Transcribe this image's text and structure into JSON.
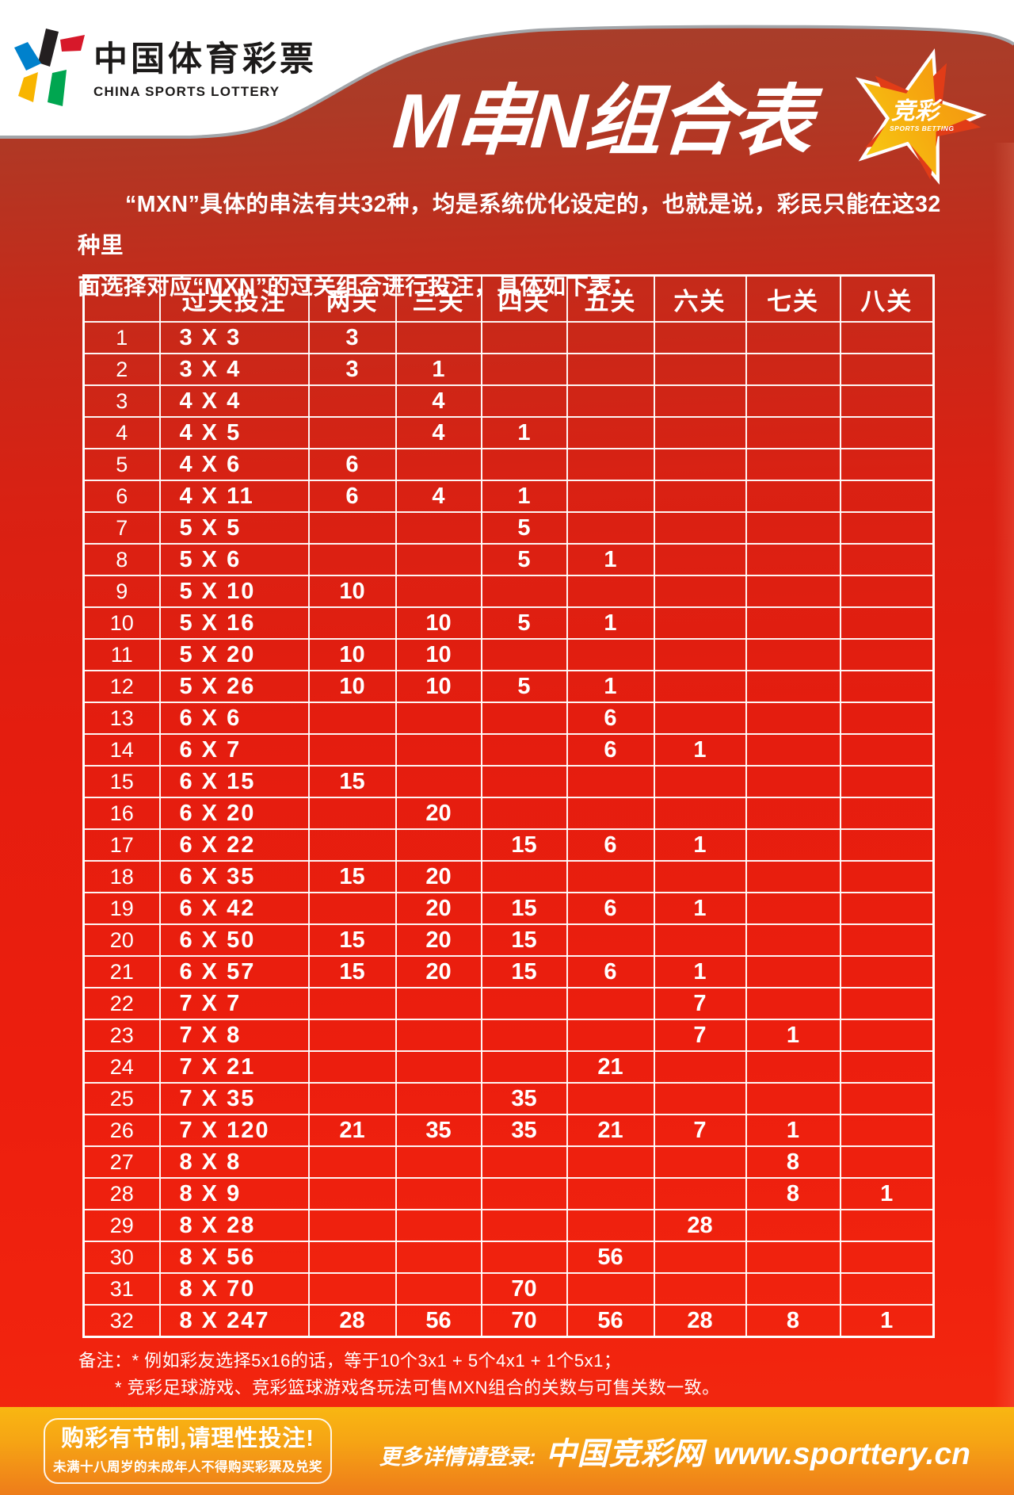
{
  "brand": {
    "name_cn": "中国体育彩票",
    "name_en": "CHINA SPORTS LOTTERY"
  },
  "header": {
    "title": "M串N组合表",
    "badge": {
      "label_cn": "竞彩",
      "label_en": "SPORTS BETTING"
    }
  },
  "intro": {
    "line1": "“MXN”具体的串法有共32种，均是系统优化设定的，也就是说，彩民只能在这32种里",
    "line2": "面选择对应“MXN”的过关组合进行投注，具体如下表："
  },
  "table": {
    "headers": [
      "",
      "过关投注",
      "两关",
      "三关",
      "四关",
      "五关",
      "六关",
      "七关",
      "八关"
    ],
    "rows": [
      [
        "1",
        "3 X 3",
        "3",
        "",
        "",
        "",
        "",
        "",
        ""
      ],
      [
        "2",
        "3 X 4",
        "3",
        "1",
        "",
        "",
        "",
        "",
        ""
      ],
      [
        "3",
        "4 X 4",
        "",
        "4",
        "",
        "",
        "",
        "",
        ""
      ],
      [
        "4",
        "4 X 5",
        "",
        "4",
        "1",
        "",
        "",
        "",
        ""
      ],
      [
        "5",
        "4 X 6",
        "6",
        "",
        "",
        "",
        "",
        "",
        ""
      ],
      [
        "6",
        "4 X 11",
        "6",
        "4",
        "1",
        "",
        "",
        "",
        ""
      ],
      [
        "7",
        "5 X 5",
        "",
        "",
        "5",
        "",
        "",
        "",
        ""
      ],
      [
        "8",
        "5 X 6",
        "",
        "",
        "5",
        "1",
        "",
        "",
        ""
      ],
      [
        "9",
        "5 X 10",
        "10",
        "",
        "",
        "",
        "",
        "",
        ""
      ],
      [
        "10",
        "5 X 16",
        "",
        "10",
        "5",
        "1",
        "",
        "",
        ""
      ],
      [
        "11",
        "5 X 20",
        "10",
        "10",
        "",
        "",
        "",
        "",
        ""
      ],
      [
        "12",
        "5 X 26",
        "10",
        "10",
        "5",
        "1",
        "",
        "",
        ""
      ],
      [
        "13",
        "6 X 6",
        "",
        "",
        "",
        "6",
        "",
        "",
        ""
      ],
      [
        "14",
        "6 X 7",
        "",
        "",
        "",
        "6",
        "1",
        "",
        ""
      ],
      [
        "15",
        "6 X 15",
        "15",
        "",
        "",
        "",
        "",
        "",
        ""
      ],
      [
        "16",
        "6 X 20",
        "",
        "20",
        "",
        "",
        "",
        "",
        ""
      ],
      [
        "17",
        "6 X 22",
        "",
        "",
        "15",
        "6",
        "1",
        "",
        ""
      ],
      [
        "18",
        "6 X 35",
        "15",
        "20",
        "",
        "",
        "",
        "",
        ""
      ],
      [
        "19",
        "6 X 42",
        "",
        "20",
        "15",
        "6",
        "1",
        "",
        ""
      ],
      [
        "20",
        "6 X 50",
        "15",
        "20",
        "15",
        "",
        "",
        "",
        ""
      ],
      [
        "21",
        "6 X 57",
        "15",
        "20",
        "15",
        "6",
        "1",
        "",
        ""
      ],
      [
        "22",
        "7 X 7",
        "",
        "",
        "",
        "",
        "7",
        "",
        ""
      ],
      [
        "23",
        "7 X 8",
        "",
        "",
        "",
        "",
        "7",
        "1",
        ""
      ],
      [
        "24",
        "7 X 21",
        "",
        "",
        "",
        "21",
        "",
        "",
        ""
      ],
      [
        "25",
        "7 X 35",
        "",
        "",
        "35",
        "",
        "",
        "",
        ""
      ],
      [
        "26",
        "7 X 120",
        "21",
        "35",
        "35",
        "21",
        "7",
        "1",
        ""
      ],
      [
        "27",
        "8 X 8",
        "",
        "",
        "",
        "",
        "",
        "8",
        ""
      ],
      [
        "28",
        "8 X 9",
        "",
        "",
        "",
        "",
        "",
        "8",
        "1"
      ],
      [
        "29",
        "8 X 28",
        "",
        "",
        "",
        "",
        "28",
        "",
        ""
      ],
      [
        "30",
        "8 X 56",
        "",
        "",
        "",
        "56",
        "",
        "",
        ""
      ],
      [
        "31",
        "8 X 70",
        "",
        "",
        "70",
        "",
        "",
        "",
        ""
      ],
      [
        "32",
        "8 X 247",
        "28",
        "56",
        "70",
        "56",
        "28",
        "8",
        "1"
      ]
    ]
  },
  "notes": {
    "line1": "备注：* 例如彩友选择5x16的话，等于10个3x1 + 5个4x1 + 1个5x1；",
    "line2": "* 竞彩足球游戏、竞彩篮球游戏各玩法可售MXN组合的关数与可售关数一致。"
  },
  "footer": {
    "warning_title": "购彩有节制,请理性投注!",
    "warning_sub": "未满十八周岁的未成年人不得购买彩票及兑奖",
    "more_info_prefix": "更多详情请登录:",
    "site_name": "中国竞彩网",
    "site_url": "www.sporttery.cn"
  },
  "colors": {
    "background_red_top": "#a5402d",
    "background_red_bottom": "#f42a10",
    "footer_orange_top": "#f9b712",
    "footer_orange_bottom": "#ee7d1a",
    "star_yellow": "#f7cf13",
    "star_orange": "#f29111",
    "star_shadow_red": "#e13c17",
    "logo_black": "#231f20",
    "logo_red": "#d7182a",
    "logo_blue": "#0081cc",
    "logo_yellow": "#f8b500",
    "logo_green": "#00a650"
  }
}
